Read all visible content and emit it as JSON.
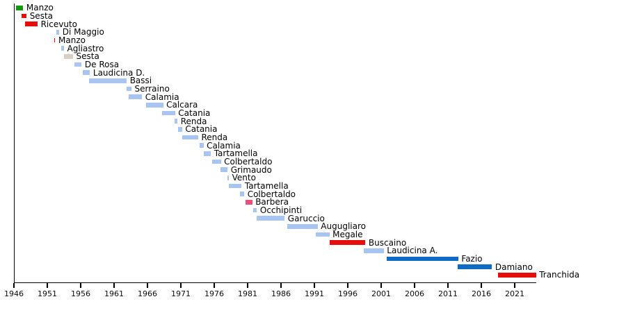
{
  "chart_data": {
    "type": "bar",
    "variant": "horizontal-gantt-timeline",
    "title": "",
    "xlabel": "",
    "ylabel": "",
    "grid": false,
    "legend": false,
    "x_axis": {
      "unit": "year",
      "range": [
        1946,
        2024.2
      ],
      "tick_step": 5,
      "ticks": [
        1946,
        1951,
        1956,
        1961,
        1966,
        1971,
        1976,
        1981,
        1986,
        1991,
        1996,
        2001,
        2006,
        2011,
        2016,
        2021
      ]
    },
    "palette": {
      "green": "#0A9A0A",
      "red": "#E60D0D",
      "lightblue": "#A8C4F0",
      "tan": "#D9CFC5",
      "pink": "#E8517C",
      "blue": "#0E6BC4"
    },
    "items": [
      {
        "label": "Manzo",
        "start": 1946.35,
        "end": 1947.4,
        "color": "green"
      },
      {
        "label": "Sesta",
        "start": 1947.15,
        "end": 1947.9,
        "color": "red"
      },
      {
        "label": "Ricevuto",
        "start": 1947.65,
        "end": 1949.55,
        "color": "red"
      },
      {
        "label": "Di Maggio",
        "start": 1952.3,
        "end": 1952.8,
        "color": "lightblue"
      },
      {
        "label": "Manzo",
        "start": 1952.05,
        "end": 1952.2,
        "color": "red"
      },
      {
        "label": "Agliastro",
        "start": 1953.1,
        "end": 1953.5,
        "color": "lightblue"
      },
      {
        "label": "Sesta",
        "start": 1953.5,
        "end": 1954.85,
        "color": "tan"
      },
      {
        "label": "De Rosa",
        "start": 1955.1,
        "end": 1956.15,
        "color": "lightblue"
      },
      {
        "label": "Laudicina D.",
        "start": 1956.3,
        "end": 1957.4,
        "color": "lightblue"
      },
      {
        "label": "Bassi",
        "start": 1957.25,
        "end": 1962.9,
        "color": "lightblue"
      },
      {
        "label": "Serraino",
        "start": 1962.9,
        "end": 1963.6,
        "color": "lightblue"
      },
      {
        "label": "Calamia",
        "start": 1963.2,
        "end": 1965.2,
        "color": "lightblue"
      },
      {
        "label": "Calcara",
        "start": 1965.8,
        "end": 1968.35,
        "color": "lightblue"
      },
      {
        "label": "Catania",
        "start": 1968.15,
        "end": 1970.15,
        "color": "lightblue"
      },
      {
        "label": "Renda",
        "start": 1970.05,
        "end": 1970.5,
        "color": "lightblue"
      },
      {
        "label": "Catania",
        "start": 1970.6,
        "end": 1971.2,
        "color": "lightblue"
      },
      {
        "label": "Renda",
        "start": 1971.2,
        "end": 1973.6,
        "color": "lightblue"
      },
      {
        "label": "Calamia",
        "start": 1973.8,
        "end": 1974.4,
        "color": "lightblue"
      },
      {
        "label": "Tartamella",
        "start": 1974.45,
        "end": 1975.5,
        "color": "lightblue"
      },
      {
        "label": "Colbertaldo",
        "start": 1975.7,
        "end": 1977.0,
        "color": "lightblue"
      },
      {
        "label": "Grimaudo",
        "start": 1976.9,
        "end": 1978.0,
        "color": "lightblue"
      },
      {
        "label": "Vento",
        "start": 1978.0,
        "end": 1978.2,
        "color": "lightblue"
      },
      {
        "label": "Tartamella",
        "start": 1978.2,
        "end": 1980.1,
        "color": "lightblue"
      },
      {
        "label": "Colbertaldo",
        "start": 1979.9,
        "end": 1980.5,
        "color": "lightblue"
      },
      {
        "label": "Barbera",
        "start": 1980.7,
        "end": 1981.7,
        "color": "pink"
      },
      {
        "label": "Occhipinti",
        "start": 1981.8,
        "end": 1982.4,
        "color": "lightblue"
      },
      {
        "label": "Garuccio",
        "start": 1982.4,
        "end": 1986.55,
        "color": "lightblue"
      },
      {
        "label": "Augugliaro",
        "start": 1986.9,
        "end": 1991.5,
        "color": "lightblue"
      },
      {
        "label": "Megale",
        "start": 1991.2,
        "end": 1993.25,
        "color": "lightblue"
      },
      {
        "label": "Buscaino",
        "start": 1993.3,
        "end": 1998.65,
        "color": "red"
      },
      {
        "label": "Laudicina A.",
        "start": 1998.4,
        "end": 2001.4,
        "color": "lightblue"
      },
      {
        "label": "Fazio",
        "start": 2001.85,
        "end": 2012.55,
        "color": "blue"
      },
      {
        "label": "Damiano",
        "start": 2012.45,
        "end": 2017.6,
        "color": "blue"
      },
      {
        "label": "Tranchida",
        "start": 2018.5,
        "end": 2024.2,
        "color": "red"
      }
    ]
  }
}
